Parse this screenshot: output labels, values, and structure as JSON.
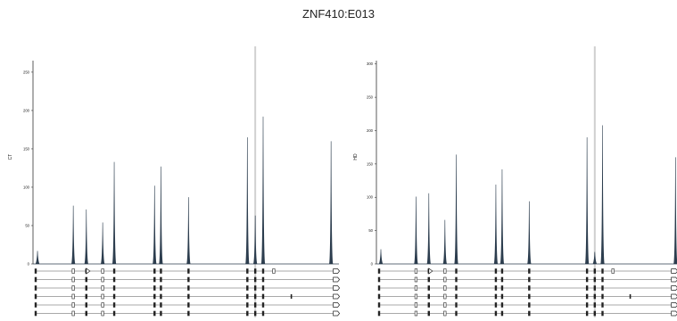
{
  "title": "ZNF410:E013",
  "chart_data": [
    {
      "type": "area",
      "ylabel": "CT",
      "ylim": [
        0,
        265
      ],
      "yticks": [
        0,
        50,
        100,
        150,
        200,
        250
      ],
      "highlight_x": 0.724,
      "peaks": [
        {
          "x": 0.006,
          "y": 17
        },
        {
          "x": 0.124,
          "y": 76
        },
        {
          "x": 0.167,
          "y": 71
        },
        {
          "x": 0.221,
          "y": 54
        },
        {
          "x": 0.259,
          "y": 133
        },
        {
          "x": 0.392,
          "y": 102
        },
        {
          "x": 0.413,
          "y": 127
        },
        {
          "x": 0.504,
          "y": 87
        },
        {
          "x": 0.698,
          "y": 165
        },
        {
          "x": 0.724,
          "y": 63
        },
        {
          "x": 0.75,
          "y": 192
        },
        {
          "x": 0.974,
          "y": 160
        }
      ]
    },
    {
      "type": "area",
      "ylabel": "HD",
      "ylim": [
        0,
        305
      ],
      "yticks": [
        0,
        50,
        100,
        150,
        200,
        250,
        300
      ],
      "highlight_x": 0.724,
      "peaks": [
        {
          "x": 0.006,
          "y": 22
        },
        {
          "x": 0.124,
          "y": 101
        },
        {
          "x": 0.167,
          "y": 106
        },
        {
          "x": 0.221,
          "y": 66
        },
        {
          "x": 0.259,
          "y": 164
        },
        {
          "x": 0.392,
          "y": 119
        },
        {
          "x": 0.413,
          "y": 142
        },
        {
          "x": 0.504,
          "y": 94
        },
        {
          "x": 0.698,
          "y": 190
        },
        {
          "x": 0.724,
          "y": 18
        },
        {
          "x": 0.75,
          "y": 208
        },
        {
          "x": 0.995,
          "y": 160
        }
      ]
    }
  ],
  "transcripts": {
    "rows": 6,
    "exon_x": [
      0.0,
      0.124,
      0.167,
      0.221,
      0.259,
      0.392,
      0.413,
      0.504,
      0.698,
      0.724,
      0.75,
      0.99
    ],
    "extra": [
      {
        "row": 0,
        "x": 0.785,
        "shape": "rect"
      },
      {
        "row": 3,
        "x": 0.843,
        "shape": "dash"
      }
    ],
    "arrow_row_first": 0.173
  },
  "colors": {
    "fill": "#2c3d4e",
    "highlight": "#d0d0d0",
    "axis": "#333333",
    "track": "#555555"
  }
}
